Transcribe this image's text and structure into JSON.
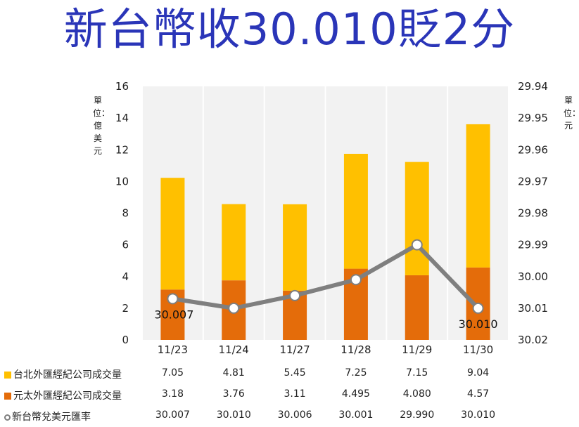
{
  "title": "新台幣收30.010貶2分",
  "left_axis_unit": "單位：億美元",
  "right_axis_unit": "單位：元",
  "colors": {
    "taipei": "#ffc000",
    "yuanta": "#e46c0a",
    "rate": "#7f7f7f",
    "title": "#2a35b8"
  },
  "chart_data": {
    "type": "bar",
    "stacked": true,
    "categories": [
      "11/23",
      "11/24",
      "11/27",
      "11/28",
      "11/29",
      "11/30"
    ],
    "series": [
      {
        "name": "台北外匯經紀公司成交量",
        "values": [
          7.05,
          4.81,
          5.45,
          7.25,
          7.15,
          9.04
        ]
      },
      {
        "name": "元太外匯經紀公司成交量",
        "values": [
          3.18,
          3.76,
          3.11,
          4.495,
          4.08,
          4.57
        ]
      },
      {
        "name": "新台幣兌美元匯率",
        "type": "line",
        "axis": "right",
        "values": [
          30.007,
          30.01,
          30.006,
          30.001,
          29.99,
          30.01
        ]
      }
    ],
    "y_ticks": [
      "0",
      "2",
      "4",
      "6",
      "8",
      "10",
      "12",
      "14",
      "16"
    ],
    "ylim": [
      0,
      16
    ],
    "y2_ticks": [
      "29.94",
      "29.95",
      "29.96",
      "29.97",
      "29.98",
      "29.99",
      "30.00",
      "30.01",
      "30.02"
    ],
    "y2lim": [
      29.94,
      30.02
    ],
    "y2_reversed": true,
    "data_labels": [
      {
        "category": "11/23",
        "text": "30.007"
      },
      {
        "category": "11/30",
        "text": "30.010"
      }
    ],
    "table": {
      "rows": [
        {
          "label": "台北外匯經紀公司成交量",
          "cells": [
            "7.05",
            "4.81",
            "5.45",
            "7.25",
            "7.15",
            "9.04"
          ]
        },
        {
          "label": "元太外匯經紀公司成交量",
          "cells": [
            "3.18",
            "3.76",
            "3.11",
            "4.495",
            "4.080",
            "4.57"
          ]
        },
        {
          "label": "新台幣兌美元匯率",
          "cells": [
            "30.007",
            "30.010",
            "30.006",
            "30.001",
            "29.990",
            "30.010"
          ]
        }
      ]
    }
  }
}
